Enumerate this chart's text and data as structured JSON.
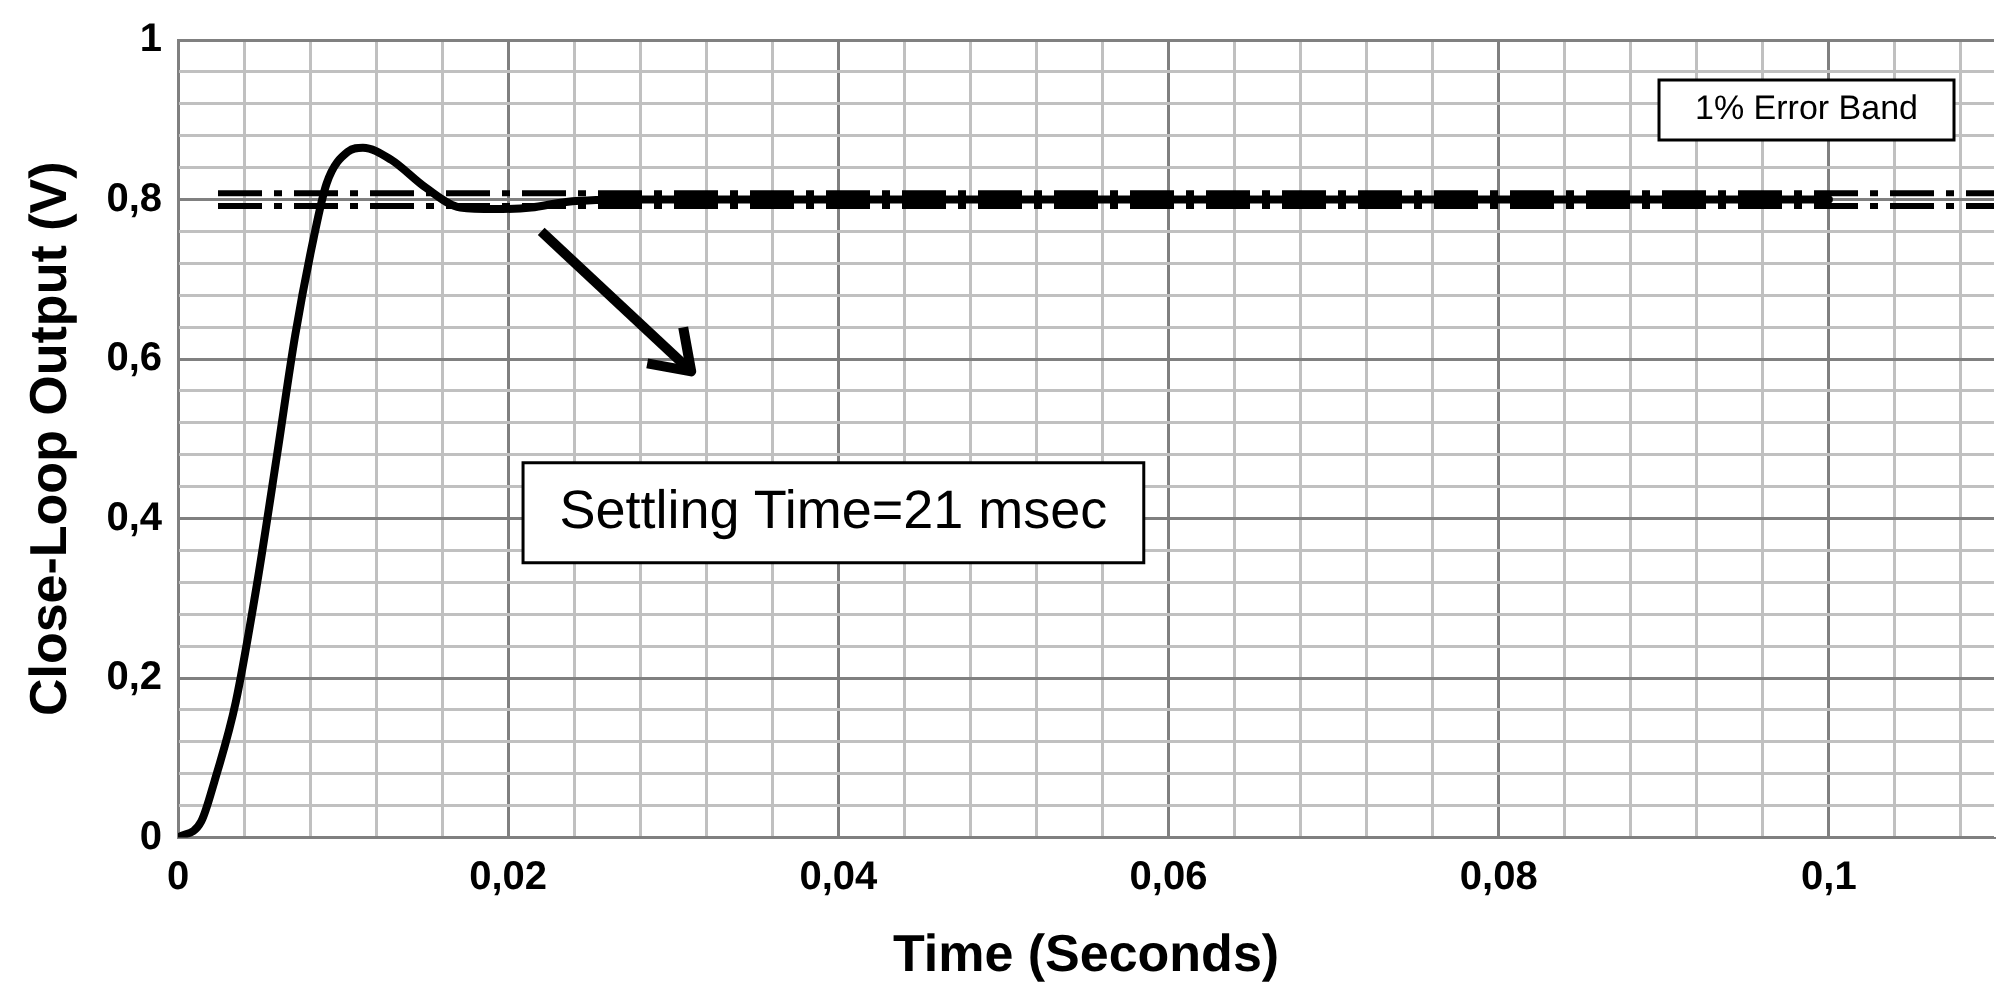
{
  "chart_data": {
    "type": "line",
    "xlabel": "Time (Seconds)",
    "ylabel": "Close-Loop Output (V)",
    "x": [
      0,
      0.0014,
      0.0022,
      0.0035,
      0.0048,
      0.006,
      0.0071,
      0.0082,
      0.009,
      0.0103,
      0.0112,
      0.0129,
      0.015,
      0.0171,
      0.0192,
      0.0214,
      0.0235,
      0.0278,
      0.04,
      0.06,
      0.08,
      0.1
    ],
    "series": [
      {
        "color": "#000000",
        "values": [
          0,
          0.02,
          0.07,
          0.17,
          0.32,
          0.48,
          0.63,
          0.75,
          0.82,
          0.86,
          0.865,
          0.85,
          0.815,
          0.79,
          0.788,
          0.79,
          0.797,
          0.8,
          0.8,
          0.8,
          0.8,
          0.8
        ]
      }
    ],
    "xlim": [
      0,
      0.11
    ],
    "xticks": [
      {
        "value": 0,
        "label": "0"
      },
      {
        "value": 0.004,
        "label": null
      },
      {
        "value": 0.008,
        "label": null
      },
      {
        "value": 0.012,
        "label": null
      },
      {
        "value": 0.016,
        "label": null
      },
      {
        "value": 0.02,
        "label": "0,02"
      },
      {
        "value": 0.024,
        "label": null
      },
      {
        "value": 0.028,
        "label": null
      },
      {
        "value": 0.032,
        "label": null
      },
      {
        "value": 0.036,
        "label": null
      },
      {
        "value": 0.04,
        "label": "0,04"
      },
      {
        "value": 0.044,
        "label": null
      },
      {
        "value": 0.048,
        "label": null
      },
      {
        "value": 0.052,
        "label": null
      },
      {
        "value": 0.056,
        "label": null
      },
      {
        "value": 0.06,
        "label": "0,06"
      },
      {
        "value": 0.064,
        "label": null
      },
      {
        "value": 0.068,
        "label": null
      },
      {
        "value": 0.072,
        "label": null
      },
      {
        "value": 0.076,
        "label": null
      },
      {
        "value": 0.08,
        "label": "0,08"
      },
      {
        "value": 0.084,
        "label": null
      },
      {
        "value": 0.088,
        "label": null
      },
      {
        "value": 0.092,
        "label": null
      },
      {
        "value": 0.096,
        "label": null
      },
      {
        "value": 0.1,
        "label": "0,1"
      },
      {
        "value": 0.104,
        "label": null
      },
      {
        "value": 0.108,
        "label": null
      }
    ],
    "ylim": [
      0,
      1
    ],
    "yticks": [
      {
        "value": 0,
        "label": "0"
      },
      {
        "value": 0.04,
        "label": null
      },
      {
        "value": 0.08,
        "label": null
      },
      {
        "value": 0.12,
        "label": null
      },
      {
        "value": 0.16,
        "label": null
      },
      {
        "value": 0.2,
        "label": "0,2"
      },
      {
        "value": 0.24,
        "label": null
      },
      {
        "value": 0.28,
        "label": null
      },
      {
        "value": 0.32,
        "label": null
      },
      {
        "value": 0.36,
        "label": null
      },
      {
        "value": 0.4,
        "label": "0,4"
      },
      {
        "value": 0.44,
        "label": null
      },
      {
        "value": 0.48,
        "label": null
      },
      {
        "value": 0.52,
        "label": null
      },
      {
        "value": 0.56,
        "label": null
      },
      {
        "value": 0.6,
        "label": "0,6"
      },
      {
        "value": 0.64,
        "label": null
      },
      {
        "value": 0.68,
        "label": null
      },
      {
        "value": 0.72,
        "label": null
      },
      {
        "value": 0.76,
        "label": null
      },
      {
        "value": 0.8,
        "label": "0,8"
      },
      {
        "value": 0.84,
        "label": null
      },
      {
        "value": 0.88,
        "label": null
      },
      {
        "value": 0.92,
        "label": null
      },
      {
        "value": 0.96,
        "label": null
      },
      {
        "value": 1,
        "label": "1"
      }
    ],
    "grid": true,
    "legend": false,
    "marker": "none",
    "line_style": "solid",
    "ref_lines": [
      {
        "axis": "y",
        "value": 0.808,
        "color": "#000000",
        "line_style": "dashed"
      },
      {
        "axis": "y",
        "value": 0.792,
        "color": "#000000",
        "line_style": "dashed"
      }
    ],
    "annotations": [
      "1% Error Band",
      "Settling Time=21 msec"
    ]
  }
}
